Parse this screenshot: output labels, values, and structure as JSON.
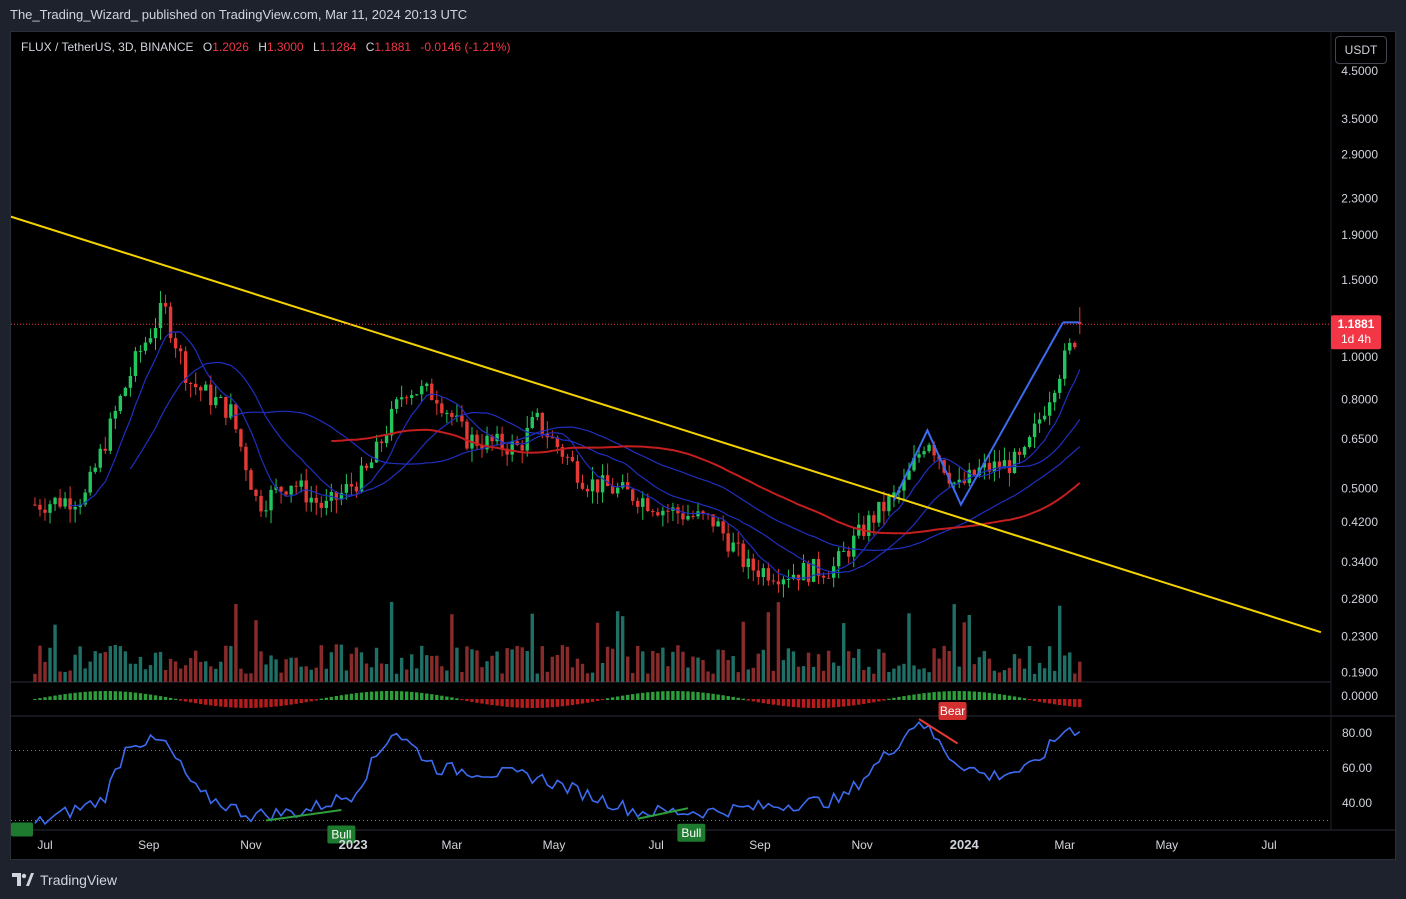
{
  "header": {
    "publisher_line": "The_Trading_Wizard_ published on TradingView.com, Mar 11, 2024 20:13 UTC"
  },
  "legend": {
    "symbol": "FLUX / TetherUS, 3D, BINANCE",
    "o_label": "O",
    "o": "1.2026",
    "h_label": "H",
    "h": "1.3000",
    "l_label": "L",
    "l": "1.1284",
    "c_label": "C",
    "c": "1.1881",
    "change": "-0.0146 (-1.21%)"
  },
  "currency_button": "USDT",
  "price_badge": {
    "price": "1.1881",
    "countdown": "1d 4h"
  },
  "footer": {
    "brand": "TradingView"
  },
  "colors": {
    "up": "#26a69a",
    "down": "#ef5350",
    "candle_up": "#22c55e",
    "candle_down": "#e53935",
    "trendline": "#f5d300",
    "ma_red": "#c41e1e",
    "ma_blue": "#1f2fbf",
    "pattern_line": "#3d6bf0",
    "rsi_line": "#3d6bf0"
  },
  "chart_data": [
    {
      "type": "candlestick",
      "title": "FLUX / TetherUS, 3D, BINANCE",
      "y_scale": "log",
      "y_ticks": [
        "4.5000",
        "3.5000",
        "2.9000",
        "2.3000",
        "1.9000",
        "1.5000",
        "1.0000",
        "0.8000",
        "0.6500",
        "0.5000",
        "0.4200",
        "0.3400",
        "0.2800",
        "0.2300",
        "0.1900"
      ],
      "x_ticks": [
        "Jul",
        "Sep",
        "Nov",
        "2023",
        "Mar",
        "May",
        "Jul",
        "Sep",
        "Nov",
        "2024",
        "Mar",
        "May",
        "Jul"
      ],
      "last_price": 1.1881,
      "approx_close_path": [
        {
          "x": "2022-06-25",
          "y": 0.46
        },
        {
          "x": "2022-07-25",
          "y": 0.48
        },
        {
          "x": "2022-08-15",
          "y": 0.8
        },
        {
          "x": "2022-08-25",
          "y": 1.0
        },
        {
          "x": "2022-09-10",
          "y": 1.3
        },
        {
          "x": "2022-09-25",
          "y": 0.88
        },
        {
          "x": "2022-10-20",
          "y": 0.75
        },
        {
          "x": "2022-11-05",
          "y": 0.46
        },
        {
          "x": "2022-11-25",
          "y": 0.52
        },
        {
          "x": "2022-12-15",
          "y": 0.45
        },
        {
          "x": "2023-01-10",
          "y": 0.55
        },
        {
          "x": "2023-02-01",
          "y": 0.85
        },
        {
          "x": "2023-02-20",
          "y": 0.82
        },
        {
          "x": "2023-03-10",
          "y": 0.65
        },
        {
          "x": "2023-04-10",
          "y": 0.62
        },
        {
          "x": "2023-04-20",
          "y": 0.72
        },
        {
          "x": "2023-05-20",
          "y": 0.52
        },
        {
          "x": "2023-06-20",
          "y": 0.48
        },
        {
          "x": "2023-07-05",
          "y": 0.45
        },
        {
          "x": "2023-08-05",
          "y": 0.42
        },
        {
          "x": "2023-08-25",
          "y": 0.33
        },
        {
          "x": "2023-09-15",
          "y": 0.32
        },
        {
          "x": "2023-10-15",
          "y": 0.33
        },
        {
          "x": "2023-11-05",
          "y": 0.42
        },
        {
          "x": "2023-11-25",
          "y": 0.5
        },
        {
          "x": "2023-12-10",
          "y": 0.66
        },
        {
          "x": "2023-12-28",
          "y": 0.5
        },
        {
          "x": "2024-01-10",
          "y": 0.55
        },
        {
          "x": "2024-02-05",
          "y": 0.58
        },
        {
          "x": "2024-02-25",
          "y": 0.9
        },
        {
          "x": "2024-03-11",
          "y": 1.1881
        }
      ],
      "overlays": [
        "yellow descending trendline",
        "red moving average",
        "blue moving averages",
        "blue zigzag pattern"
      ]
    },
    {
      "type": "bar",
      "title": "Volume",
      "description_values": "relative volume bars, peaks near Aug 2022, Feb 2023, Sep 2023, Nov 2023"
    },
    {
      "type": "bar",
      "title": "Histogram",
      "y_ticks": [
        "0.0000"
      ]
    },
    {
      "type": "line",
      "title": "RSI",
      "y_ticks": [
        "80.00",
        "60.00",
        "40.00"
      ],
      "levels": [
        70,
        30
      ],
      "labels": [
        {
          "text": "Bull"
        },
        {
          "text": "Bull"
        },
        {
          "text": "Bear"
        }
      ],
      "approx_values": [
        {
          "x": "2022-06-25",
          "y": 28
        },
        {
          "x": "2022-08-05",
          "y": 42
        },
        {
          "x": "2022-08-20",
          "y": 75
        },
        {
          "x": "2022-09-10",
          "y": 75
        },
        {
          "x": "2022-10-01",
          "y": 45
        },
        {
          "x": "2022-11-01",
          "y": 33
        },
        {
          "x": "2022-12-01",
          "y": 35
        },
        {
          "x": "2023-01-01",
          "y": 45
        },
        {
          "x": "2023-01-25",
          "y": 82
        },
        {
          "x": "2023-02-20",
          "y": 60
        },
        {
          "x": "2023-04-20",
          "y": 55
        },
        {
          "x": "2023-06-20",
          "y": 35
        },
        {
          "x": "2023-08-01",
          "y": 35
        },
        {
          "x": "2023-09-05",
          "y": 38
        },
        {
          "x": "2023-10-20",
          "y": 42
        },
        {
          "x": "2023-11-20",
          "y": 72
        },
        {
          "x": "2023-12-05",
          "y": 88
        },
        {
          "x": "2023-12-25",
          "y": 65
        },
        {
          "x": "2024-01-15",
          "y": 55
        },
        {
          "x": "2024-02-10",
          "y": 60
        },
        {
          "x": "2024-03-01",
          "y": 82
        },
        {
          "x": "2024-03-11",
          "y": 82
        }
      ]
    }
  ]
}
